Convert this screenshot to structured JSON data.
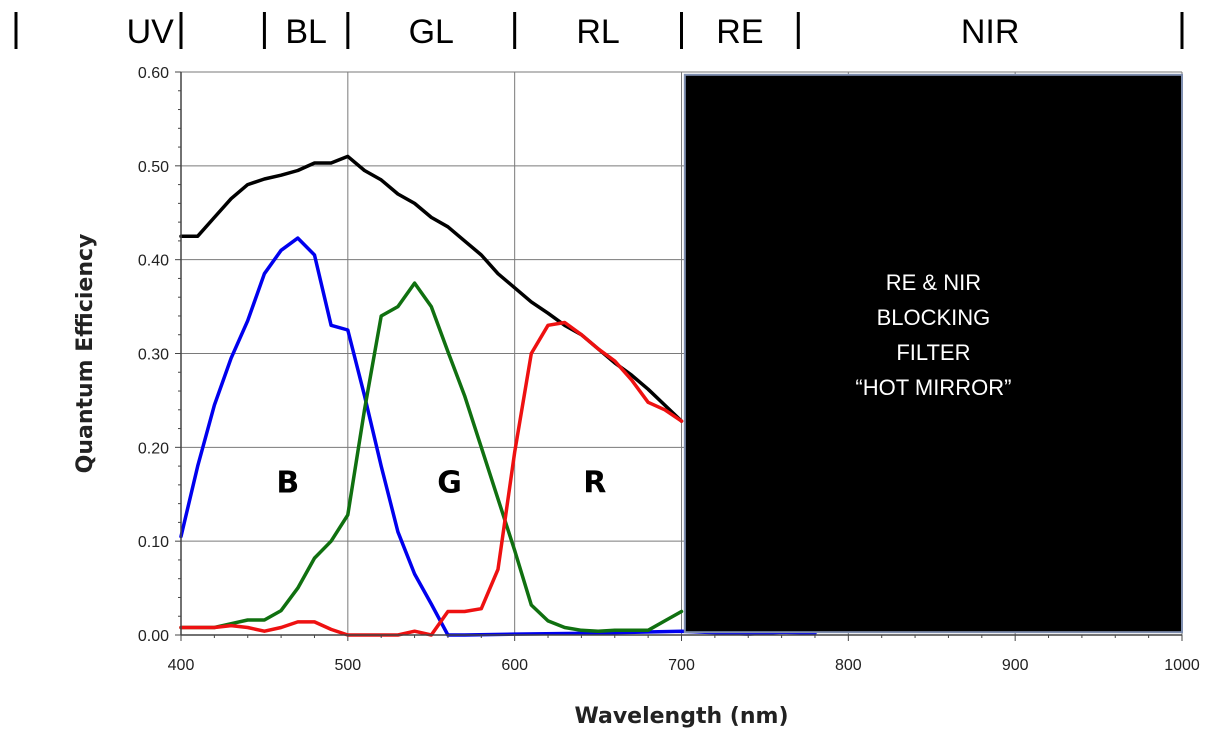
{
  "bands": [
    {
      "label": "UV",
      "from": 400,
      "to": 450
    },
    {
      "label": "BL",
      "from": 450,
      "to": 500
    },
    {
      "label": "GL",
      "from": 500,
      "to": 600
    },
    {
      "label": "RL",
      "from": 600,
      "to": 700
    },
    {
      "label": "RE",
      "from": 700,
      "to": 770
    },
    {
      "label": "NIR",
      "from": 770,
      "to": 1000
    }
  ],
  "band_separators": [
    400,
    450,
    500,
    600,
    700,
    770,
    1000
  ],
  "filter": {
    "lines": [
      "RE & NIR",
      "BLOCKING",
      "FILTER",
      "“HOT MIRROR”"
    ],
    "from": 702,
    "to": 1000,
    "ymin": 0.003,
    "ymax": 0.597,
    "fill_color": "#000000",
    "edge_color": "#7f8fb0"
  },
  "chart_data": {
    "type": "line",
    "title": "",
    "xlabel": "Wavelength (nm)",
    "ylabel": "Quantum Efficiency",
    "xlim": [
      400,
      1000
    ],
    "ylim": [
      0,
      0.6
    ],
    "xticks": [
      400,
      500,
      600,
      700,
      800,
      900,
      1000
    ],
    "yticks": [
      0.0,
      0.1,
      0.2,
      0.3,
      0.4,
      0.5,
      0.6
    ],
    "ytick_labels": [
      "0.00",
      "0.10",
      "0.20",
      "0.30",
      "0.40",
      "0.50",
      "0.60"
    ],
    "grid": true,
    "series": [
      {
        "color": "#000000",
        "x": [
          400,
          410,
          420,
          430,
          440,
          450,
          460,
          470,
          480,
          490,
          500,
          510,
          520,
          530,
          540,
          550,
          560,
          570,
          580,
          590,
          600,
          610,
          620,
          630,
          640,
          650,
          660,
          670,
          680,
          690,
          700
        ],
        "y": [
          0.425,
          0.425,
          0.445,
          0.465,
          0.48,
          0.486,
          0.49,
          0.495,
          0.503,
          0.503,
          0.51,
          0.495,
          0.485,
          0.47,
          0.46,
          0.445,
          0.435,
          0.42,
          0.405,
          0.385,
          0.37,
          0.355,
          0.343,
          0.33,
          0.32,
          0.305,
          0.29,
          0.277,
          0.262,
          0.245,
          0.228
        ]
      },
      {
        "color": "#0000ee",
        "x": [
          400,
          410,
          420,
          430,
          440,
          450,
          460,
          470,
          480,
          490,
          500,
          510,
          520,
          530,
          540,
          550,
          560,
          570,
          600,
          650,
          700,
          740,
          760,
          780
        ],
        "y": [
          0.105,
          0.18,
          0.245,
          0.295,
          0.335,
          0.385,
          0.41,
          0.423,
          0.405,
          0.33,
          0.325,
          0.255,
          0.18,
          0.11,
          0.065,
          0.033,
          0.0,
          0.0,
          0.001,
          0.002,
          0.004,
          0.001,
          0.003,
          0.002
        ]
      },
      {
        "color": "#107010",
        "x": [
          400,
          410,
          420,
          430,
          440,
          450,
          460,
          470,
          480,
          490,
          500,
          510,
          520,
          530,
          540,
          550,
          560,
          570,
          580,
          590,
          600,
          610,
          620,
          630,
          640,
          650,
          660,
          670,
          680,
          690,
          700
        ],
        "y": [
          0.008,
          0.008,
          0.008,
          0.012,
          0.016,
          0.016,
          0.026,
          0.05,
          0.082,
          0.1,
          0.128,
          0.24,
          0.34,
          0.35,
          0.375,
          0.35,
          0.302,
          0.255,
          0.2,
          0.145,
          0.09,
          0.032,
          0.015,
          0.008,
          0.005,
          0.004,
          0.005,
          0.005,
          0.005,
          0.015,
          0.025
        ]
      },
      {
        "color": "#ee1111",
        "x": [
          400,
          410,
          420,
          430,
          440,
          450,
          460,
          470,
          480,
          490,
          500,
          510,
          520,
          530,
          540,
          550,
          560,
          570,
          580,
          590,
          600,
          610,
          620,
          630,
          640,
          650,
          660,
          670,
          680,
          690,
          700
        ],
        "y": [
          0.008,
          0.008,
          0.008,
          0.01,
          0.008,
          0.004,
          0.008,
          0.014,
          0.014,
          0.006,
          0.0,
          0.0,
          0.0,
          0.0,
          0.004,
          0.0,
          0.025,
          0.025,
          0.028,
          0.07,
          0.195,
          0.3,
          0.33,
          0.333,
          0.32,
          0.305,
          0.292,
          0.272,
          0.248,
          0.24,
          0.228
        ]
      }
    ],
    "annotations": [
      {
        "text": "B",
        "x": 464,
        "y": 0.152
      },
      {
        "text": "G",
        "x": 561,
        "y": 0.152
      },
      {
        "text": "R",
        "x": 648,
        "y": 0.152
      }
    ]
  }
}
